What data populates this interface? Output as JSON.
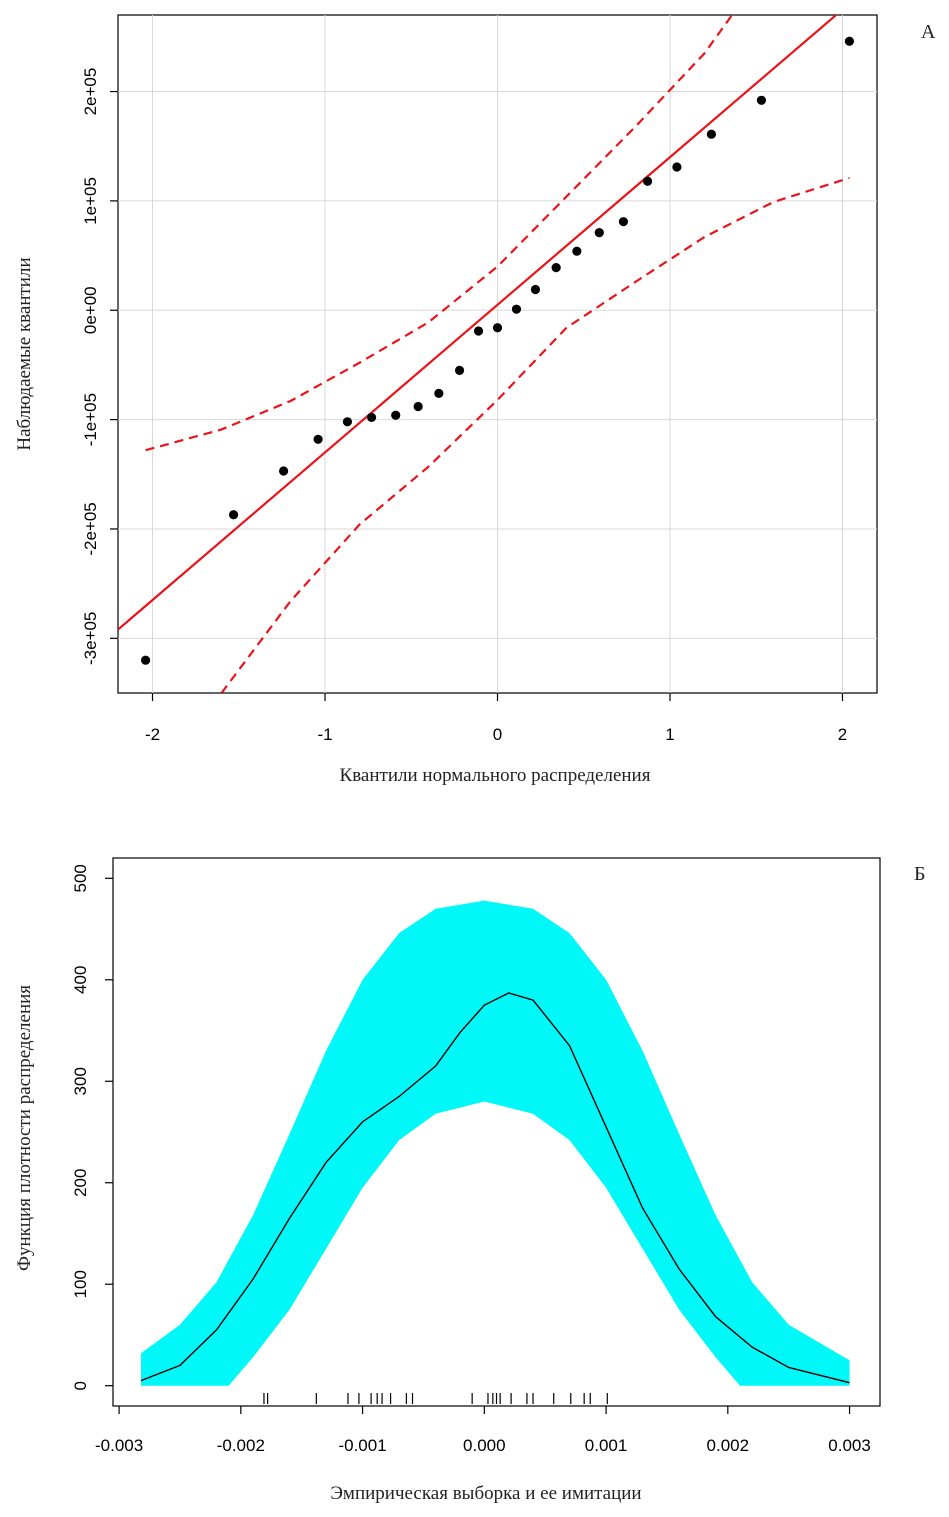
{
  "chart_data": [
    {
      "type": "scatter",
      "panel_label": "А",
      "xlabel": "Квантили нормального распределения",
      "ylabel": "Наблюдаемые квантили",
      "xlim": [
        -2.2,
        2.2
      ],
      "ylim": [
        -350000,
        270000
      ],
      "x_ticks": [
        -2,
        -1,
        0,
        1,
        2
      ],
      "x_tick_labels": [
        "-2",
        "-1",
        "0",
        "1",
        "2"
      ],
      "y_ticks": [
        -300000,
        -200000,
        -100000,
        0,
        100000,
        200000
      ],
      "y_tick_labels": [
        "-3e+05",
        "-2e+05",
        "-1e+05",
        "0e+00",
        "1e+05",
        "2e+05"
      ],
      "grid": true,
      "colors": {
        "points": "#000000",
        "reference": "#e8141a",
        "grid": "#d9d9d9"
      },
      "points": [
        {
          "x": -2.04,
          "y": -320000
        },
        {
          "x": -1.53,
          "y": -187000
        },
        {
          "x": -1.24,
          "y": -147000
        },
        {
          "x": -1.04,
          "y": -118000
        },
        {
          "x": -0.87,
          "y": -102000
        },
        {
          "x": -0.73,
          "y": -98000
        },
        {
          "x": -0.59,
          "y": -96000
        },
        {
          "x": -0.46,
          "y": -88000
        },
        {
          "x": -0.34,
          "y": -76000
        },
        {
          "x": -0.22,
          "y": -55000
        },
        {
          "x": -0.11,
          "y": -19000
        },
        {
          "x": 0.0,
          "y": -16000
        },
        {
          "x": 0.11,
          "y": 1000
        },
        {
          "x": 0.22,
          "y": 19000
        },
        {
          "x": 0.34,
          "y": 39000
        },
        {
          "x": 0.46,
          "y": 54000
        },
        {
          "x": 0.59,
          "y": 71000
        },
        {
          "x": 0.73,
          "y": 81000
        },
        {
          "x": 0.87,
          "y": 118000
        },
        {
          "x": 1.04,
          "y": 131000
        },
        {
          "x": 1.24,
          "y": 161000
        },
        {
          "x": 1.53,
          "y": 192000
        },
        {
          "x": 2.04,
          "y": 246000
        }
      ],
      "reference_line": {
        "intercept": 5000,
        "slope": 135000
      },
      "confidence_upper": [
        {
          "x": -2.04,
          "y": -128000
        },
        {
          "x": -1.6,
          "y": -109000
        },
        {
          "x": -1.2,
          "y": -83000
        },
        {
          "x": -0.8,
          "y": -48000
        },
        {
          "x": -0.4,
          "y": -11000
        },
        {
          "x": 0.0,
          "y": 40000
        },
        {
          "x": 0.4,
          "y": 104000
        },
        {
          "x": 0.8,
          "y": 168000
        },
        {
          "x": 1.2,
          "y": 235000
        },
        {
          "x": 1.36,
          "y": 270000
        }
      ],
      "confidence_lower": [
        {
          "x": -1.6,
          "y": -350000
        },
        {
          "x": -1.2,
          "y": -266000
        },
        {
          "x": -0.8,
          "y": -196000
        },
        {
          "x": -0.4,
          "y": -143000
        },
        {
          "x": 0.0,
          "y": -82000
        },
        {
          "x": 0.4,
          "y": -16000
        },
        {
          "x": 0.8,
          "y": 26000
        },
        {
          "x": 1.2,
          "y": 67000
        },
        {
          "x": 1.6,
          "y": 99000
        },
        {
          "x": 2.04,
          "y": 121000
        }
      ]
    },
    {
      "type": "area",
      "panel_label": "Б",
      "xlabel": "Эмпирическая выборка и ее имитации",
      "ylabel": "Функция плотности распределения",
      "xlim": [
        -0.00305,
        0.00325
      ],
      "ylim": [
        -20,
        520
      ],
      "x_ticks": [
        -0.003,
        -0.002,
        -0.001,
        0.0,
        0.001,
        0.002,
        0.003
      ],
      "x_tick_labels": [
        "-0.003",
        "-0.002",
        "-0.001",
        "0.000",
        "0.001",
        "0.002",
        "0.003"
      ],
      "y_ticks": [
        0,
        100,
        200,
        300,
        400,
        500
      ],
      "y_tick_labels": [
        "0",
        "100",
        "200",
        "300",
        "400",
        "500"
      ],
      "grid": false,
      "colors": {
        "band": "#00f8f8",
        "density": "#000000"
      },
      "band_upper": [
        {
          "x": -0.00282,
          "y": 32
        },
        {
          "x": -0.0025,
          "y": 60
        },
        {
          "x": -0.0022,
          "y": 102
        },
        {
          "x": -0.0019,
          "y": 168
        },
        {
          "x": -0.0016,
          "y": 248
        },
        {
          "x": -0.0013,
          "y": 330
        },
        {
          "x": -0.001,
          "y": 400
        },
        {
          "x": -0.0007,
          "y": 446
        },
        {
          "x": -0.0004,
          "y": 470
        },
        {
          "x": 0.0,
          "y": 478
        },
        {
          "x": 0.0004,
          "y": 470
        },
        {
          "x": 0.0007,
          "y": 446
        },
        {
          "x": 0.001,
          "y": 400
        },
        {
          "x": 0.0013,
          "y": 330
        },
        {
          "x": 0.0016,
          "y": 248
        },
        {
          "x": 0.0019,
          "y": 168
        },
        {
          "x": 0.0022,
          "y": 102
        },
        {
          "x": 0.0025,
          "y": 60
        },
        {
          "x": 0.003,
          "y": 25
        }
      ],
      "band_lower": [
        {
          "x": -0.00282,
          "y": 0
        },
        {
          "x": -0.0021,
          "y": 0
        },
        {
          "x": -0.0019,
          "y": 28
        },
        {
          "x": -0.0016,
          "y": 75
        },
        {
          "x": -0.0013,
          "y": 135
        },
        {
          "x": -0.001,
          "y": 195
        },
        {
          "x": -0.0007,
          "y": 242
        },
        {
          "x": -0.0004,
          "y": 268
        },
        {
          "x": 0.0,
          "y": 280
        },
        {
          "x": 0.0004,
          "y": 268
        },
        {
          "x": 0.0007,
          "y": 242
        },
        {
          "x": 0.001,
          "y": 195
        },
        {
          "x": 0.0013,
          "y": 135
        },
        {
          "x": 0.0016,
          "y": 75
        },
        {
          "x": 0.0019,
          "y": 28
        },
        {
          "x": 0.0021,
          "y": 0
        },
        {
          "x": 0.003,
          "y": 0
        }
      ],
      "density": [
        {
          "x": -0.00282,
          "y": 5
        },
        {
          "x": -0.0025,
          "y": 20
        },
        {
          "x": -0.0022,
          "y": 55
        },
        {
          "x": -0.0019,
          "y": 105
        },
        {
          "x": -0.0016,
          "y": 165
        },
        {
          "x": -0.0013,
          "y": 220
        },
        {
          "x": -0.001,
          "y": 260
        },
        {
          "x": -0.0007,
          "y": 285
        },
        {
          "x": -0.0004,
          "y": 315
        },
        {
          "x": -0.0002,
          "y": 348
        },
        {
          "x": 0.0,
          "y": 375
        },
        {
          "x": 0.0002,
          "y": 387
        },
        {
          "x": 0.0004,
          "y": 380
        },
        {
          "x": 0.0007,
          "y": 335
        },
        {
          "x": 0.001,
          "y": 255
        },
        {
          "x": 0.0013,
          "y": 175
        },
        {
          "x": 0.0016,
          "y": 115
        },
        {
          "x": 0.0019,
          "y": 68
        },
        {
          "x": 0.0022,
          "y": 38
        },
        {
          "x": 0.0025,
          "y": 18
        },
        {
          "x": 0.003,
          "y": 3
        }
      ],
      "rug": [
        -0.00181,
        -0.00178,
        -0.00138,
        -0.00112,
        -0.00103,
        -0.00093,
        -0.00088,
        -0.00084,
        -0.00077,
        -0.00064,
        -0.00059,
        -0.0001,
        3e-05,
        7e-05,
        0.0001,
        0.00013,
        0.00022,
        0.00035,
        0.0004,
        0.00057,
        0.00071,
        0.00082,
        0.00087,
        0.00101
      ]
    }
  ]
}
